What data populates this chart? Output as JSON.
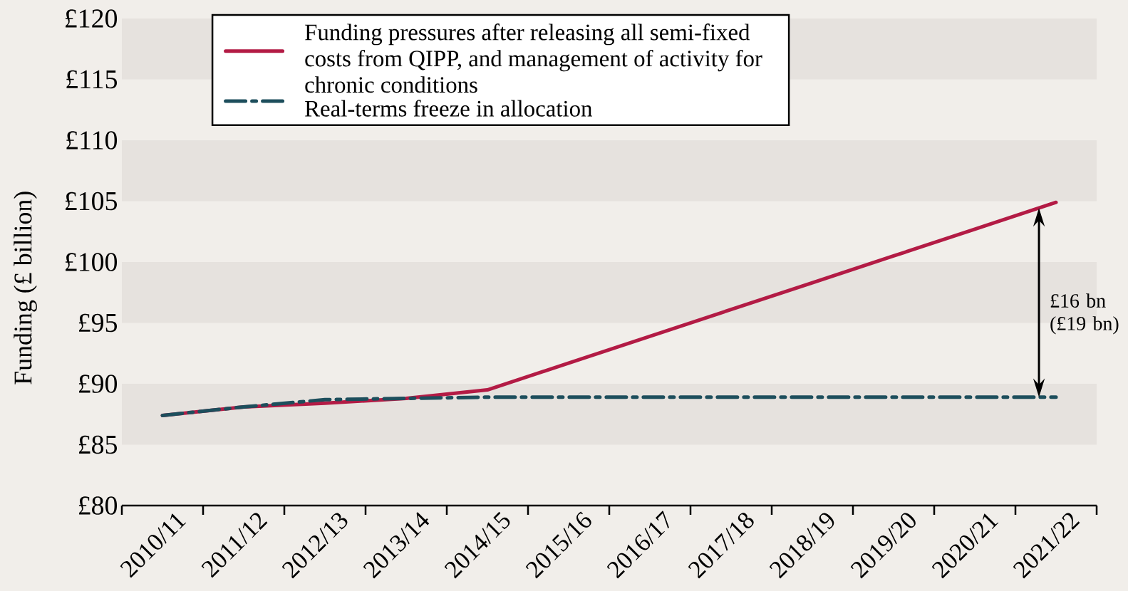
{
  "chart_data": {
    "type": "line",
    "ylabel": "Funding (£ billion)",
    "categories": [
      "2010/11",
      "2011/12",
      "2012/13",
      "2013/14",
      "2014/15",
      "2015/16",
      "2016/17",
      "2017/18",
      "2018/19",
      "2019/20",
      "2020/21",
      "2021/22"
    ],
    "series": [
      {
        "name": "Funding pressures after releasing all semi-fixed costs from QIPP, and management of activity for chronic conditions",
        "color": "#b31b45",
        "line_style": "solid",
        "values": [
          87.4,
          88.1,
          88.4,
          88.8,
          89.5,
          91.7,
          93.9,
          96.1,
          98.3,
          100.5,
          102.7,
          104.9
        ]
      },
      {
        "name": "Real-terms freeze in allocation",
        "color": "#1d4e5c",
        "line_style": "dashdot",
        "values": [
          87.4,
          88.1,
          88.7,
          88.8,
          88.9,
          88.9,
          88.9,
          88.9,
          88.9,
          88.9,
          88.9,
          88.9
        ]
      }
    ],
    "ylim": [
      80,
      120
    ],
    "yticks": [
      {
        "value": 80,
        "label": "£80"
      },
      {
        "value": 85,
        "label": "£85"
      },
      {
        "value": 90,
        "label": "£90"
      },
      {
        "value": 95,
        "label": "£95"
      },
      {
        "value": 100,
        "label": "£100"
      },
      {
        "value": 105,
        "label": "£105"
      },
      {
        "value": 110,
        "label": "£110"
      },
      {
        "value": 115,
        "label": "£115"
      },
      {
        "value": 120,
        "label": "£120"
      }
    ],
    "bands": [
      {
        "axis": "y",
        "from": 85,
        "to": 90,
        "color": "#e6e2de"
      },
      {
        "axis": "y",
        "from": 95,
        "to": 100,
        "color": "#e6e2de"
      },
      {
        "axis": "y",
        "from": 105,
        "to": 110,
        "color": "#e6e2de"
      },
      {
        "axis": "y",
        "from": 115,
        "to": 120,
        "color": "#e6e2de"
      }
    ],
    "annotations": [
      "£16 bn (£19 bn)"
    ],
    "legend": "top left"
  }
}
